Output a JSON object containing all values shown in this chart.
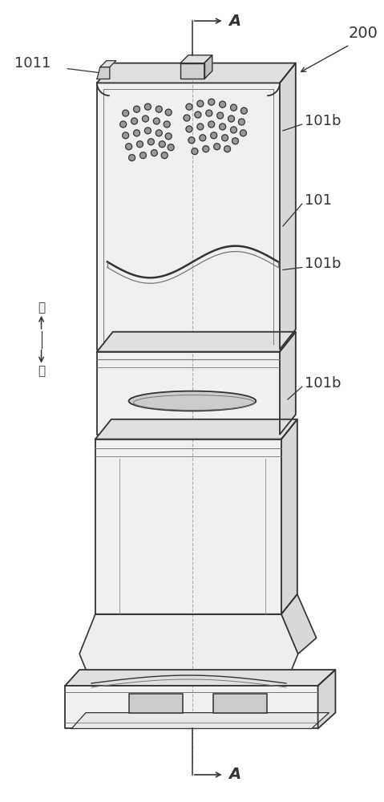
{
  "bg_color": "#ffffff",
  "line_color": "#777777",
  "light_gray": "#aaaaaa",
  "dark_line": "#333333",
  "fill_front": "#f0f0f0",
  "fill_top": "#e0e0e0",
  "fill_right": "#d8d8d8",
  "labels": {
    "A_top": "A",
    "A_bottom": "A",
    "num_200": "200",
    "num_1011": "1011",
    "num_101b_1": "101b",
    "num_101": "101",
    "num_101b_2": "101b",
    "num_101b_3": "101b",
    "up": "上",
    "down": "下"
  },
  "figsize": [
    4.79,
    10.0
  ],
  "dpi": 100
}
